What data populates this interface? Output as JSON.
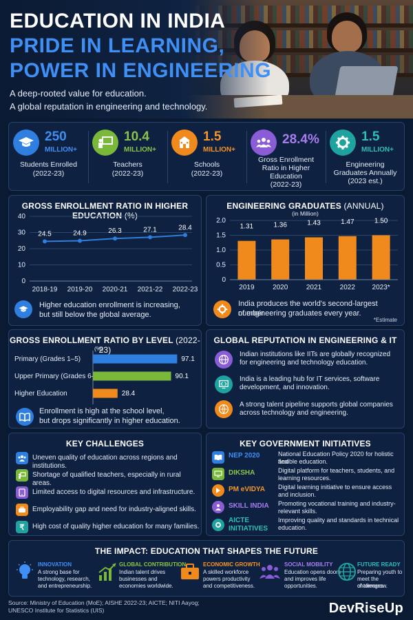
{
  "hero": {
    "title": "EDUCATION IN INDIA",
    "subtitle_line1": "PRIDE IN LEARNING,",
    "subtitle_line2": "POWER IN ENGINEERING",
    "desc_line1": "A deep-rooted value for education.",
    "desc_line2": "A global reputation in engineering and technology."
  },
  "stats": [
    {
      "number": "250",
      "unit": "MILLION+",
      "label1": "Students Enrolled",
      "label2": "(2022-23)",
      "label3": "",
      "label4": "",
      "color": "#2f7fe0",
      "icon": "graduation-cap-icon"
    },
    {
      "number": "10.4",
      "unit": "MILLION+",
      "label1": "Teachers",
      "label2": "(2022-23)",
      "label3": "",
      "label4": "",
      "color": "#7ab83a",
      "icon": "teacher-board-icon"
    },
    {
      "number": "1.5",
      "unit": "MILLION+",
      "label1": "Schools",
      "label2": "(2022-23)",
      "label3": "",
      "label4": "",
      "color": "#f08a1c",
      "icon": "school-building-icon"
    },
    {
      "number": "28.4%",
      "unit": "",
      "label1": "Gross Enrollment",
      "label2": "Ratio in Higher",
      "label3": "Education",
      "label4": "(2022-23)",
      "color": "#8a5cd6",
      "icon": "people-group-icon"
    },
    {
      "number": "1.5",
      "unit": "MILLION+",
      "label1": "Engineering",
      "label2": "Graduates Annually",
      "label3": "(2023 est.)",
      "label4": "",
      "color": "#1fa3a0",
      "icon": "gear-icon"
    }
  ],
  "chart_data": [
    {
      "type": "line",
      "title": "GROSS ENROLLMENT RATIO IN HIGHER EDUCATION",
      "title_unit": "(%)",
      "categories": [
        "2018-19",
        "2019-20",
        "2020-21",
        "2021-22",
        "2022-23"
      ],
      "values": [
        24.5,
        24.9,
        26.3,
        27.1,
        28.4
      ],
      "yticks": [
        "0",
        "10",
        "20",
        "30",
        "40"
      ],
      "ylim": [
        0,
        40
      ],
      "grid": true,
      "color": "#2f7fe0",
      "note_line1": "Higher education enrollment is increasing,",
      "note_line2": "but still below the global average."
    },
    {
      "type": "bar",
      "title": "ENGINEERING GRADUATES",
      "title_unit": "(ANNUAL)",
      "ylabel": "(in Million)",
      "categories": [
        "2019",
        "2020",
        "2021",
        "2022",
        "2023*"
      ],
      "values": [
        1.31,
        1.36,
        1.43,
        1.47,
        1.5
      ],
      "labels": [
        "1.31",
        "1.36",
        "1.43",
        "1.47",
        "1.50"
      ],
      "yticks": [
        "0",
        "0.5",
        "1.0",
        "1.5",
        "2.0"
      ],
      "ylim": [
        0,
        2.0
      ],
      "grid": true,
      "color": "#f08a1c",
      "note_line1": "India produces the world's second-largest number",
      "note_line2": "of engineering graduates every year.",
      "footnote": "*Estimate"
    },
    {
      "type": "bar",
      "orientation": "horizontal",
      "title": "GROSS ENROLLMENT RATIO BY LEVEL",
      "title_unit": "(2022-23)",
      "unit_label": "(%)",
      "categories": [
        "Primary (Grades 1–5)",
        "Upper Primary (Grades 6–8)",
        "Higher Education"
      ],
      "values": [
        97.1,
        90.1,
        28.4
      ],
      "labels": [
        "97.1",
        "90.1",
        "28.4"
      ],
      "xlim": [
        0,
        100
      ],
      "colors": [
        "#2f7fe0",
        "#7ab83a",
        "#f08a1c"
      ],
      "note_line1": "Enrollment is high at the school level,",
      "note_line2": "but drops significantly in higher education."
    }
  ],
  "reputation": {
    "title": "GLOBAL REPUTATION IN ENGINEERING & IT",
    "items": [
      {
        "line1": "Indian institutions like IITs are globally recognized",
        "line2": "for engineering and technology education.",
        "color": "#8a5cd6"
      },
      {
        "line1": "India is a leading hub for IT services, software",
        "line2": "development, and innovation.",
        "color": "#1fa3a0"
      },
      {
        "line1": "A strong talent pipeline supports global companies",
        "line2": "across technology and engineering.",
        "color": "#f08a1c"
      }
    ]
  },
  "challenges": {
    "title": "KEY CHALLENGES",
    "items": [
      {
        "text": "Uneven quality of education across regions and institutions.",
        "color": "#2f7fe0"
      },
      {
        "text": "Shortage of qualified teachers, especially in rural areas.",
        "color": "#7ab83a"
      },
      {
        "text": "Limited access to digital resources and infrastructure.",
        "color": "#8a5cd6"
      },
      {
        "text": "Employability gap and need for industry-aligned skills.",
        "color": "#f08a1c"
      },
      {
        "text": "High cost of quality higher education for many families.",
        "color": "#1fa3a0"
      }
    ]
  },
  "initiatives": {
    "title": "KEY GOVERNMENT INITIATIVES",
    "items": [
      {
        "name1": "NEP 2020",
        "name2": "",
        "line1": "National Education Policy 2020 for holistic and",
        "line2": "flexible education.",
        "color": "#2f7fe0"
      },
      {
        "name1": "DIKSHA",
        "name2": "",
        "line1": "Digital platform for teachers, students, and",
        "line2": "learning resources.",
        "color": "#7ab83a"
      },
      {
        "name1": "PM eVIDYA",
        "name2": "",
        "line1": "Digital learning initiative to ensure access",
        "line2": "and inclusion.",
        "color": "#f08a1c"
      },
      {
        "name1": "SKILL INDIA",
        "name2": "",
        "line1": "Promoting vocational training and industry-",
        "line2": "relevant skills.",
        "color": "#8a5cd6"
      },
      {
        "name1": "AICTE",
        "name2": "INITIATIVES",
        "line1": "Improving quality and standards in technical",
        "line2": "education.",
        "color": "#1fa3a0"
      }
    ]
  },
  "impact": {
    "title": "THE IMPACT: EDUCATION THAT SHAPES THE FUTURE",
    "items": [
      {
        "title": "INNOVATION",
        "line1": "A strong base for",
        "line2": "technology, research,",
        "line3": "and entrepreneurship.",
        "color": "#3f8ff5"
      },
      {
        "title": "GLOBAL CONTRIBUTION",
        "line1": "Indian talent drives",
        "line2": "businesses and",
        "line3": "economies worldwide.",
        "color": "#7ab83a"
      },
      {
        "title": "ECONOMIC GROWTH",
        "line1": "A skilled workforce",
        "line2": "powers productivity",
        "line3": "and competitiveness.",
        "color": "#f08a1c"
      },
      {
        "title": "SOCIAL MOBILITY",
        "line1": "Education opens doors",
        "line2": "and improves life",
        "line3": "opportunities.",
        "color": "#8a5cd6"
      },
      {
        "title": "FUTURE READY",
        "line1": "Preparing youth to",
        "line2": "meet the challenges",
        "line3": "of tomorrow.",
        "color": "#1fa3a0"
      }
    ]
  },
  "footer": {
    "source_line1": "Source: Ministry of Education (MoE); AISHE 2022-23; AICTE; NITI Aayog;",
    "source_line2": "UNESCO Institute for Statistics (UIS)",
    "brand": "DevRiseUp"
  }
}
